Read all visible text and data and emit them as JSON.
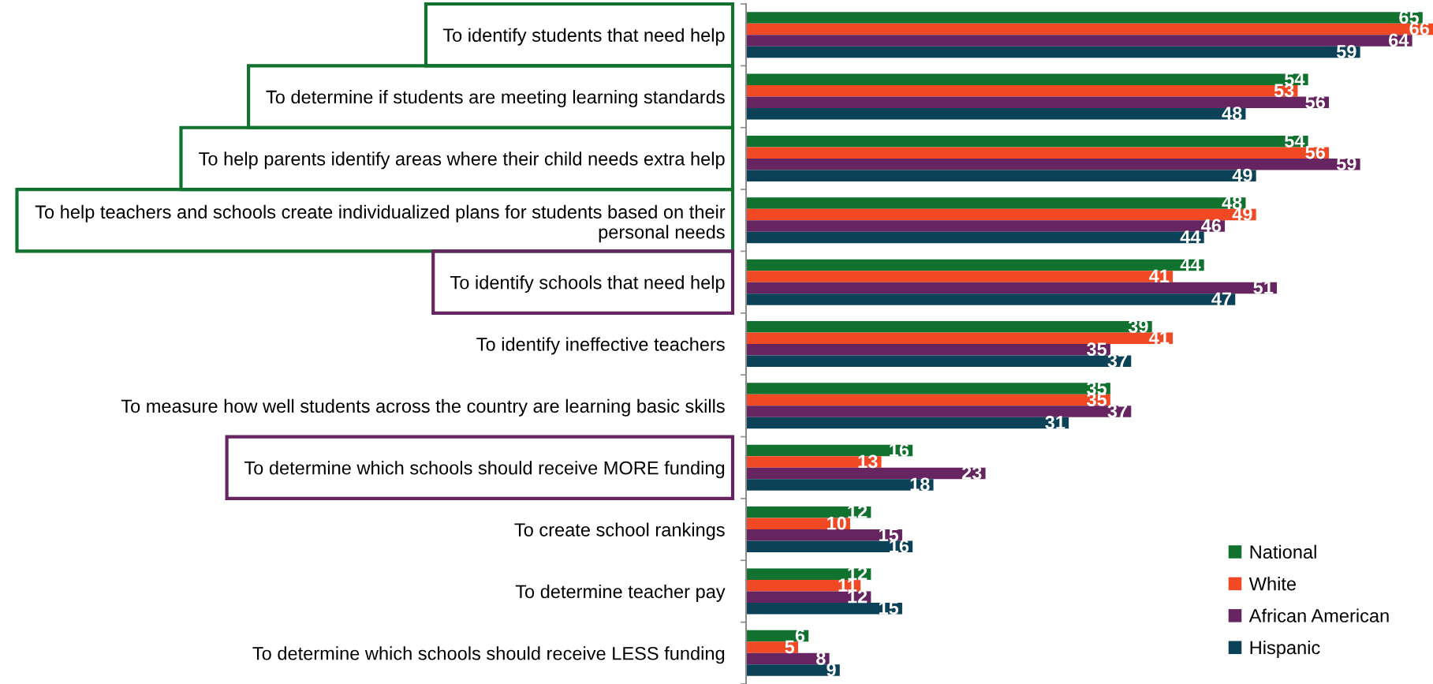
{
  "chart_data": {
    "type": "bar",
    "orientation": "horizontal",
    "categories": [
      "To identify students that need help",
      "To determine if students are meeting learning standards",
      "To help parents identify areas where their child needs extra help",
      "To help teachers and schools create individualized plans for students based on their personal needs",
      "To identify schools that need help",
      "To identify ineffective teachers",
      "To measure how well students across the country are learning basic skills",
      "To determine which schools should receive MORE funding",
      "To create school rankings",
      "To determine teacher pay",
      "To determine which schools should receive LESS funding"
    ],
    "series": [
      {
        "name": "National",
        "color": "#11722f",
        "values": [
          65,
          54,
          54,
          48,
          44,
          39,
          35,
          16,
          12,
          12,
          6
        ]
      },
      {
        "name": "White",
        "color": "#f04923",
        "values": [
          66,
          53,
          56,
          49,
          41,
          41,
          35,
          13,
          10,
          11,
          5
        ]
      },
      {
        "name": "African American",
        "color": "#662561",
        "values": [
          64,
          56,
          59,
          46,
          51,
          35,
          37,
          23,
          15,
          12,
          8
        ]
      },
      {
        "name": "Hispanic",
        "color": "#0b4257",
        "values": [
          59,
          48,
          49,
          44,
          47,
          37,
          31,
          18,
          16,
          15,
          9
        ]
      }
    ],
    "xlim": [
      0,
      66
    ],
    "data_labels": true,
    "legend": "bottom right",
    "tick_labels": "y"
  }
}
